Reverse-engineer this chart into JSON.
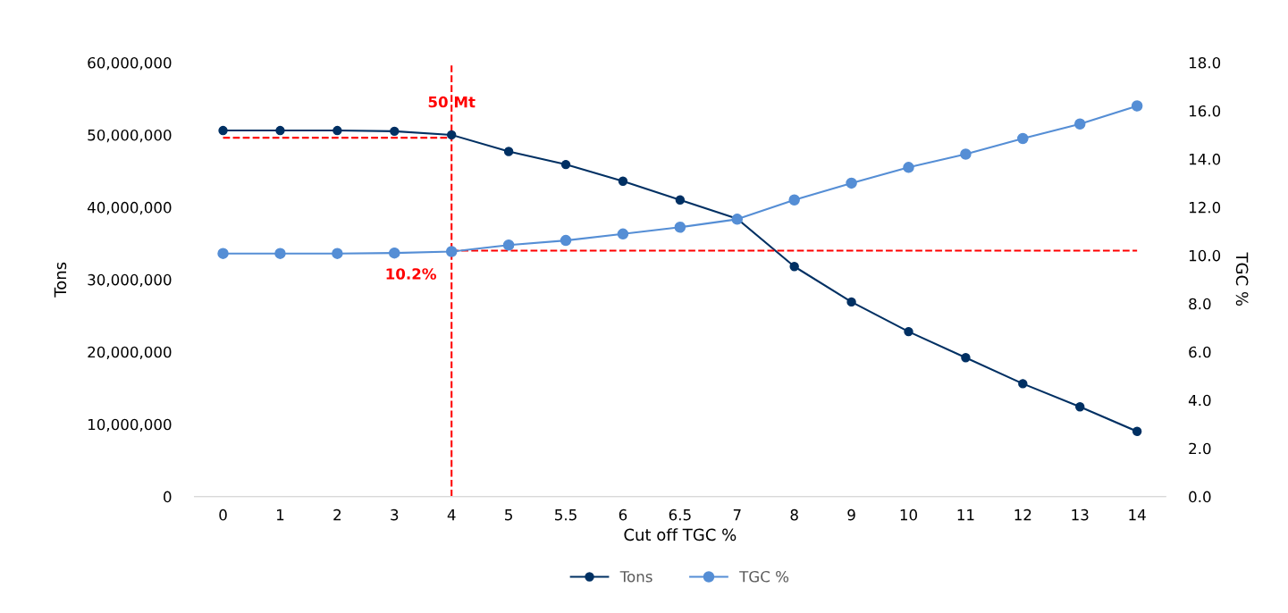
{
  "chart_data": {
    "type": "line",
    "xlabel": "Cut off TGC %",
    "ylabel": "Tons",
    "y2label": "TGC %",
    "categories": [
      "0",
      "1",
      "2",
      "3",
      "4",
      "5",
      "5.5",
      "6",
      "6.5",
      "7",
      "8",
      "9",
      "10",
      "11",
      "12",
      "13",
      "14"
    ],
    "series": [
      {
        "name": "Tons",
        "color": "#003063",
        "values": [
          50600000,
          50600000,
          50600000,
          50500000,
          50000000,
          47700000,
          45900000,
          43600000,
          41000000,
          38400000,
          31800000,
          26900000,
          22800000,
          19200000,
          15600000,
          12400000,
          9000000
        ]
      },
      {
        "name": "TGC %",
        "color": "#558ed5",
        "axis": "y2",
        "values": [
          10.08,
          10.08,
          10.08,
          10.1,
          10.16,
          10.43,
          10.62,
          10.89,
          11.17,
          11.5,
          12.3,
          13.0,
          13.65,
          14.2,
          14.85,
          15.45,
          16.2
        ]
      }
    ],
    "ylim": [
      0,
      60000000
    ],
    "yticks": [
      {
        "value": 0,
        "label": "0"
      },
      {
        "value": 10000000,
        "label": "10,000,000"
      },
      {
        "value": 20000000,
        "label": "20,000,000"
      },
      {
        "value": 30000000,
        "label": "30,000,000"
      },
      {
        "value": 40000000,
        "label": "40,000,000"
      },
      {
        "value": 50000000,
        "label": "50,000,000"
      },
      {
        "value": 60000000,
        "label": "60,000,000"
      }
    ],
    "y2lim": [
      0,
      18
    ],
    "y2ticks": [
      {
        "value": 0,
        "label": "0.0"
      },
      {
        "value": 2,
        "label": "2.0"
      },
      {
        "value": 4,
        "label": "4.0"
      },
      {
        "value": 6,
        "label": "6.0"
      },
      {
        "value": 8,
        "label": "8.0"
      },
      {
        "value": 10,
        "label": "10.0"
      },
      {
        "value": 12,
        "label": "12.0"
      },
      {
        "value": 14,
        "label": "14.0"
      },
      {
        "value": 16,
        "label": "16.0"
      },
      {
        "value": 18,
        "label": "18.0"
      }
    ],
    "ref_lines": [
      {
        "axis": "x",
        "value": "4",
        "color": "#ff0000",
        "line_style": "dashed"
      },
      {
        "axis": "y",
        "value": 49600000,
        "label": "50 Mt",
        "color": "#ff0000",
        "line_style": "dashed"
      },
      {
        "axis": "y2",
        "value": 10.2,
        "label": "10.2%",
        "color": "#ff0000",
        "line_style": "dashed"
      }
    ],
    "marker": "circle",
    "line_style": "solid",
    "grid": false,
    "legend": "bottom"
  }
}
